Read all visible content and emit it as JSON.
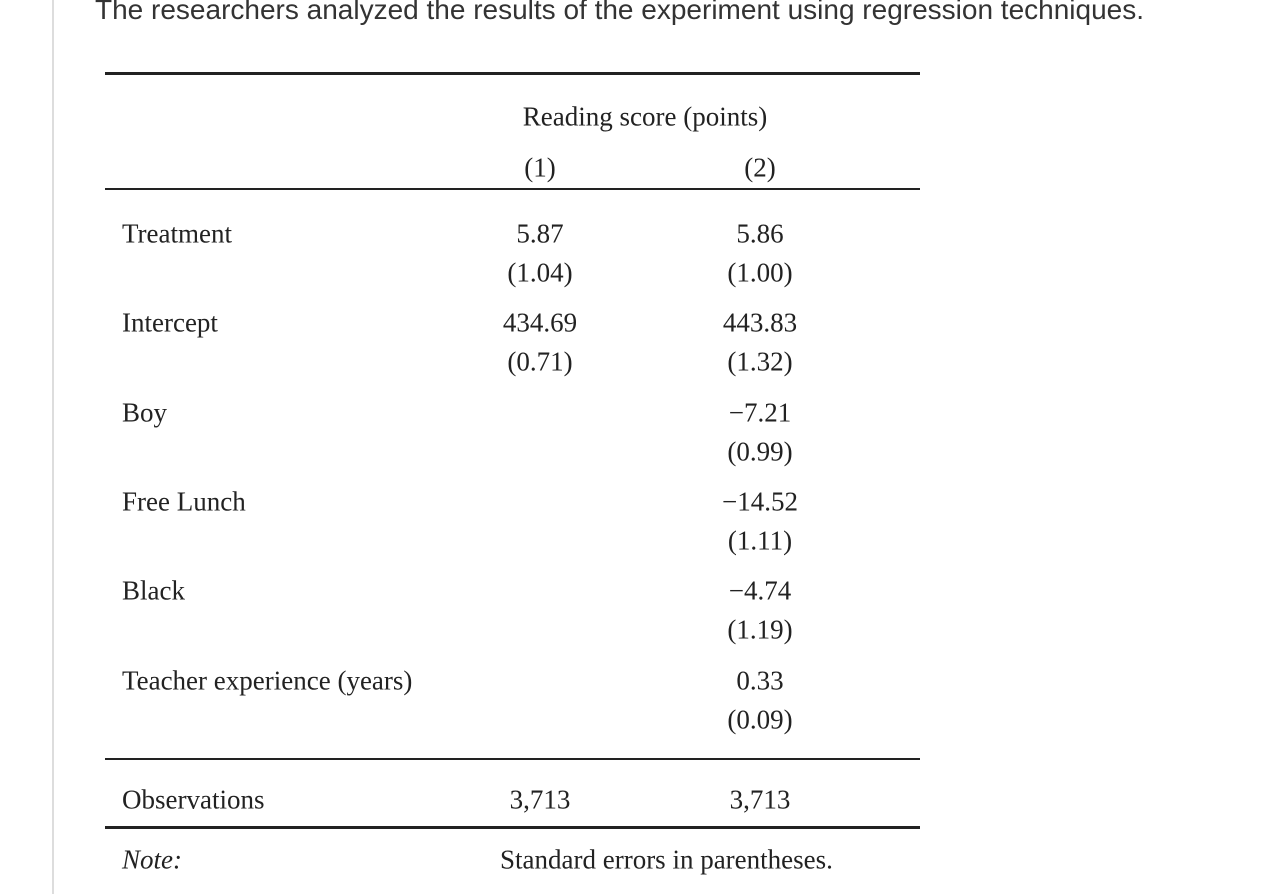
{
  "intro": "The researchers analyzed the results of the experiment using regression techniques.",
  "table": {
    "header": "Reading score (points)",
    "columns": [
      "(1)",
      "(2)"
    ],
    "rows": [
      {
        "label": "Treatment",
        "col1": {
          "coef": "5.87",
          "se": "(1.04)"
        },
        "col2": {
          "coef": "5.86",
          "se": "(1.00)"
        }
      },
      {
        "label": "Intercept",
        "col1": {
          "coef": "434.69",
          "se": "(0.71)"
        },
        "col2": {
          "coef": "443.83",
          "se": "(1.32)"
        }
      },
      {
        "label": "Boy",
        "col2": {
          "coef": "−7.21",
          "se": "(0.99)"
        }
      },
      {
        "label": "Free Lunch",
        "col2": {
          "coef": "−14.52",
          "se": "(1.11)"
        }
      },
      {
        "label": "Black",
        "col2": {
          "coef": "−4.74",
          "se": "(1.19)"
        }
      },
      {
        "label": "Teacher experience (years)",
        "col2": {
          "coef": "0.33",
          "se": "(0.09)"
        }
      }
    ],
    "observations": {
      "label": "Observations",
      "values": [
        "3,713",
        "3,713"
      ]
    },
    "note": {
      "label": "Note:",
      "text": "Standard errors in parentheses."
    }
  }
}
